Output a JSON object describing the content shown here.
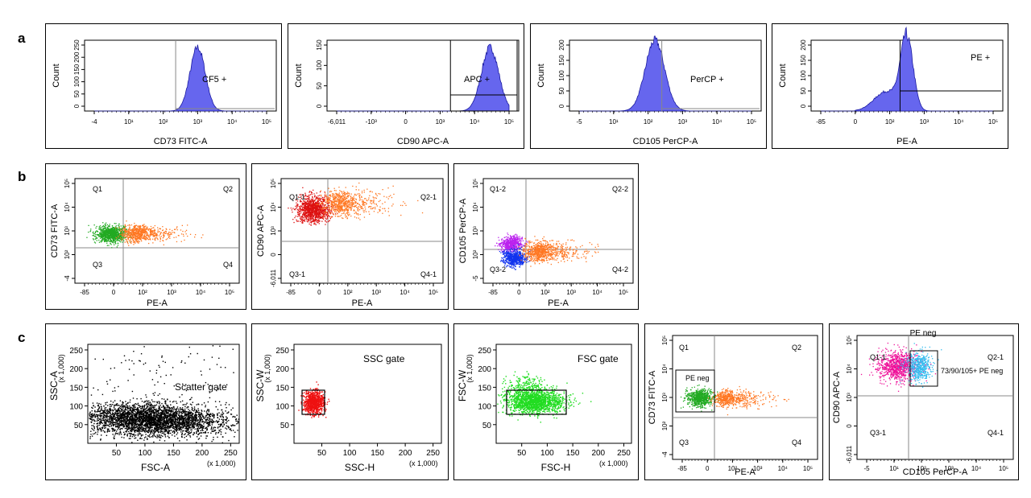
{
  "row_labels": [
    "a",
    "b",
    "c"
  ],
  "chart_data": [
    {
      "id": "a1",
      "row": "a",
      "type": "histogram",
      "xlabel": "CD73 FITC-A",
      "ylabel": "Count",
      "x_scale": "biexponential",
      "x_tick_labels": [
        "-4",
        "10¹",
        "10²",
        "10³",
        "10⁴",
        "10⁵"
      ],
      "y_tick_labels": [
        "0",
        "50",
        "100",
        "150",
        "200",
        "250"
      ],
      "ylim": [
        0,
        250
      ],
      "gate_label": "CF5 +",
      "gate_x": 230,
      "peak": {
        "center_log": 3.0,
        "width": 0.22,
        "max": 225
      },
      "fill_color": "#6666ee"
    },
    {
      "id": "a2",
      "row": "a",
      "type": "histogram",
      "xlabel": "CD90 APC-A",
      "ylabel": "Count",
      "x_scale": "biexponential",
      "x_tick_labels": [
        "-6,011",
        "-10³",
        "0",
        "10³",
        "10⁴",
        "10⁵"
      ],
      "y_tick_labels": [
        "0",
        "50",
        "100",
        "150"
      ],
      "ylim": [
        0,
        150
      ],
      "gate_label": "APC +",
      "gate_x": 1000,
      "peak": {
        "center_log": 4.45,
        "width": 0.25,
        "max": 135
      },
      "fill_color": "#6666ee"
    },
    {
      "id": "a3",
      "row": "a",
      "type": "histogram",
      "xlabel": "CD105 PerCP-A",
      "ylabel": "Count",
      "x_scale": "biexponential",
      "x_tick_labels": [
        "-5",
        "10¹",
        "10²",
        "10³",
        "10⁴",
        "10⁵"
      ],
      "y_tick_labels": [
        "0",
        "50",
        "100",
        "150",
        "200"
      ],
      "ylim": [
        0,
        200
      ],
      "gate_label": "PerCP +",
      "gate_x": 250,
      "peak": {
        "center_log": 2.2,
        "width": 0.28,
        "max": 200
      },
      "fill_color": "#6666ee"
    },
    {
      "id": "a4",
      "row": "a",
      "type": "histogram",
      "xlabel": "PE-A",
      "ylabel": "Count",
      "x_scale": "biexponential",
      "x_tick_labels": [
        "-85",
        "0",
        "10²",
        "10³",
        "10⁴",
        "10⁵"
      ],
      "y_tick_labels": [
        "0",
        "50",
        "100",
        "150",
        "200"
      ],
      "ylim": [
        0,
        200
      ],
      "gate_label": "PE +",
      "gate_x": 240,
      "peak": {
        "center_log": 2.5,
        "width": 0.18,
        "max": 210
      },
      "fill_color": "#6666ee"
    },
    {
      "id": "b1",
      "row": "b",
      "type": "scatter",
      "xlabel": "PE-A",
      "ylabel": "CD73 FITC-A",
      "x_tick_labels": [
        "-85",
        "0",
        "10²",
        "10³",
        "10⁴",
        "10⁵"
      ],
      "y_tick_labels": [
        "-4",
        "10²",
        "10³",
        "10⁴",
        "10⁵"
      ],
      "quadrants": [
        "Q1",
        "Q2",
        "Q3",
        "Q4"
      ],
      "quadrant_x": 240,
      "quadrant_y": 200,
      "populations": [
        "#22aa22",
        "#ff7722"
      ]
    },
    {
      "id": "b2",
      "row": "b",
      "type": "scatter",
      "xlabel": "PE-A",
      "ylabel": "CD90 APC-A",
      "x_tick_labels": [
        "-85",
        "0",
        "10²",
        "10³",
        "10⁴",
        "10⁵"
      ],
      "y_tick_labels": [
        "-6,011",
        "0",
        "10³",
        "10⁴",
        "10⁵"
      ],
      "quadrants": [
        "Q1-1",
        "Q2-1",
        "Q3-1",
        "Q4-1"
      ],
      "quadrant_x": 240,
      "quadrant_y": 1000,
      "populations": [
        "#dd1111",
        "#ff7722"
      ]
    },
    {
      "id": "b3",
      "row": "b",
      "type": "scatter",
      "xlabel": "PE-A",
      "ylabel": "CD105 PerCP-A",
      "x_tick_labels": [
        "-85",
        "0",
        "10²",
        "10³",
        "10⁴",
        "10⁵"
      ],
      "y_tick_labels": [
        "-5",
        "10²",
        "10³",
        "10⁴",
        "10⁵"
      ],
      "quadrants": [
        "Q1-2",
        "Q2-2",
        "Q3-2",
        "Q4-2"
      ],
      "quadrant_x": 240,
      "quadrant_y": 250,
      "populations": [
        "#bb22ee",
        "#1133ee",
        "#ff7722"
      ]
    },
    {
      "id": "c1",
      "row": "c",
      "type": "scatter",
      "xlabel": "FSC-A",
      "ylabel": "SSC-A",
      "y_unit_label": "(x 1,000)",
      "x_unit_label": "(x 1,000)",
      "x_tick_labels": [
        "50",
        "100",
        "150",
        "200",
        "250"
      ],
      "y_tick_labels": [
        "50",
        "100",
        "150",
        "200",
        "250"
      ],
      "gate_label": "Scatter gate",
      "populations": [
        "#000000"
      ]
    },
    {
      "id": "c2",
      "row": "c",
      "type": "scatter",
      "xlabel": "SSC-H",
      "ylabel": "SSC-W",
      "y_unit_label": "(x 1,000)",
      "x_unit_label": "(x 1,000)",
      "x_tick_labels": [
        "50",
        "100",
        "150",
        "200",
        "250"
      ],
      "y_tick_labels": [
        "50",
        "100",
        "150",
        "200",
        "250"
      ],
      "gate_label": "SSC gate",
      "populations": [
        "#ee1111"
      ]
    },
    {
      "id": "c3",
      "row": "c",
      "type": "scatter",
      "xlabel": "FSC-H",
      "ylabel": "FSC-W",
      "y_unit_label": "(x 1,000)",
      "x_unit_label": "(x 1,000)",
      "x_tick_labels": [
        "50",
        "100",
        "150",
        "200",
        "250"
      ],
      "y_tick_labels": [
        "50",
        "100",
        "150",
        "200",
        "250"
      ],
      "gate_label": "FSC gate",
      "populations": [
        "#22dd22"
      ]
    },
    {
      "id": "c4",
      "row": "c",
      "type": "scatter",
      "xlabel": "PE-A",
      "ylabel": "CD73 FITC-A",
      "x_tick_labels": [
        "-85",
        "0",
        "10²",
        "10³",
        "10⁴",
        "10⁵"
      ],
      "y_tick_labels": [
        "-4",
        "10²",
        "10³",
        "10⁴",
        "10⁵"
      ],
      "quadrants": [
        "Q1",
        "Q2",
        "Q3",
        "Q4"
      ],
      "gate_label": "PE neg",
      "populations": [
        "#22aa22",
        "#ff7722"
      ]
    },
    {
      "id": "c5",
      "row": "c",
      "type": "scatter",
      "xlabel": "CD105 PerCP-A",
      "ylabel": "CD90 APC-A",
      "title": "PE neg",
      "x_tick_labels": [
        "-5",
        "10¹",
        "10²",
        "10³",
        "10⁴",
        "10⁵"
      ],
      "y_tick_labels": [
        "-6,011",
        "0",
        "10³",
        "10⁴",
        "10⁵"
      ],
      "quadrants": [
        "Q1-1",
        "Q2-1",
        "Q3-1",
        "Q4-1"
      ],
      "gate_label": "73/90/105+ PE neg",
      "populations": [
        "#ee1199",
        "#33bbee"
      ]
    }
  ]
}
